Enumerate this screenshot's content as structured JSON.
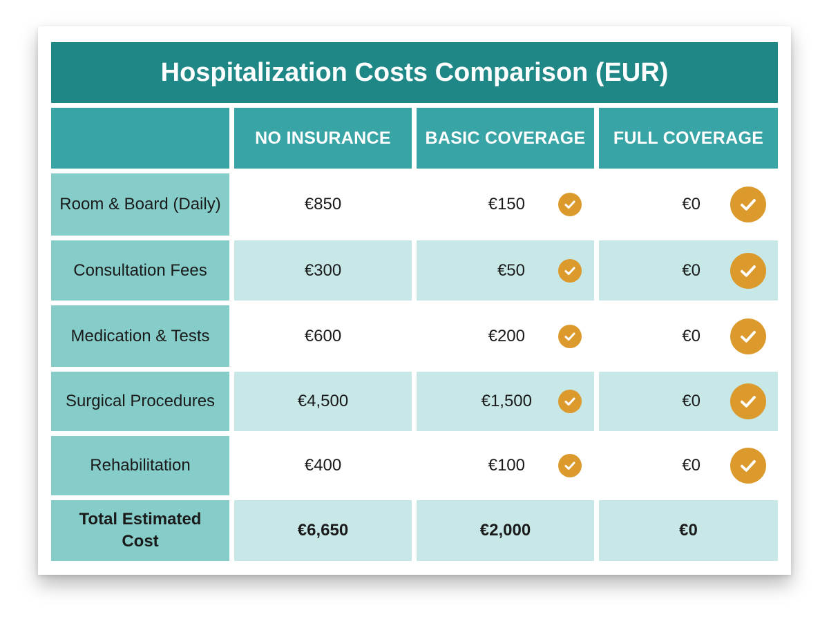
{
  "title": "Hospitalization Costs Comparison (EUR)",
  "columns": [
    "NO INSURANCE",
    "BASIC COVERAGE",
    "FULL COVERAGE"
  ],
  "rows": [
    {
      "label": "Room & Board (Daily)",
      "no_insurance": "€850",
      "basic": "€150",
      "full": "€0",
      "basic_check": true,
      "full_check": true
    },
    {
      "label": "Consultation Fees",
      "no_insurance": "€300",
      "basic": "€50",
      "full": "€0",
      "basic_check": true,
      "full_check": true
    },
    {
      "label": "Medication & Tests",
      "no_insurance": "€600",
      "basic": "€200",
      "full": "€0",
      "basic_check": true,
      "full_check": true
    },
    {
      "label": "Surgical Procedures",
      "no_insurance": "€4,500",
      "basic": "€1,500",
      "full": "€0",
      "basic_check": true,
      "full_check": true
    },
    {
      "label": "Rehabilitation",
      "no_insurance": "€400",
      "basic": "€100",
      "full": "€0",
      "basic_check": true,
      "full_check": true
    }
  ],
  "total": {
    "label": "Total Estimated Cost",
    "no_insurance": "€6,650",
    "basic": "€2,000",
    "full": "€0"
  },
  "icons": {
    "check": "checkmark-circle-icon"
  },
  "colors": {
    "title_bar": "#1f8786",
    "header": "#39a4a6",
    "row_label": "#86cdca",
    "light_row": "#c7e8e7",
    "check": "#dc9a2c"
  }
}
